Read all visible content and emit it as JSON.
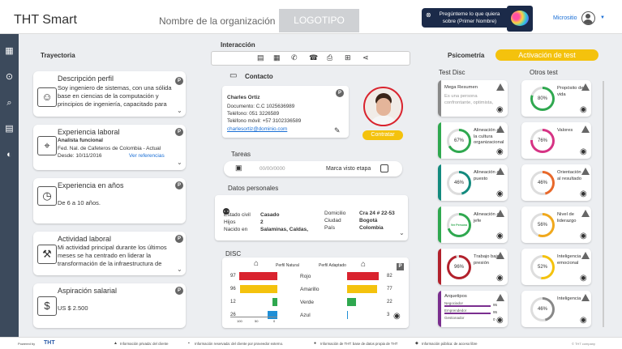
{
  "header": {
    "app_title": "THT Smart",
    "org_name": "Nombre de la organización",
    "logo": "LOGOTIPO",
    "ask_text": "Pregúnteme lo que quiera sobre (Primer Nombre)",
    "microsite": "Micrositio"
  },
  "sections": {
    "trayectoria": "Trayectoria",
    "interaccion": "Interacción",
    "psicometria": "Psicometría",
    "activation": "Activación de test",
    "test_disc": "Test Disc",
    "otros_test": "Otros test"
  },
  "trayectoria": {
    "perfil_title": "Descripción perfil",
    "perfil_text": "Soy ingeniero de sistemas, con una sólida base en ciencias de la computación y principios de ingeniería, capacitado para",
    "exp_title": "Experiencia laboral",
    "exp_role": "Analista funcional",
    "exp_company": "Fed. Nal. de Cafeteros de Colombia - Actual",
    "exp_since": "Desde: 10/11/2016",
    "exp_refs": "Ver referencias",
    "years_title": "Experiencia en años",
    "years_text": "De 6 a 10 años.",
    "act_title": "Actividad laboral",
    "act_text": "Mi actividad principal durante los últimos meses se ha centrado en liderar la transformación de la infraestructura de",
    "sal_title": "Aspiración salarial",
    "sal_text": "US $ 2.500"
  },
  "contacto": {
    "title": "Contacto",
    "name": "Charles Ortiz",
    "doc": "Documento: C.C 1025636989",
    "tel": "Teléfono: 051 3226589",
    "mobile": "Teléfono móvil: +57 3102336589",
    "email": "charlesortiz@dominio.com",
    "hire": "Contratar"
  },
  "tareas": {
    "title": "Tareas",
    "date_placeholder": "00/00/0000",
    "check_label": "Marca visto etapa"
  },
  "datos": {
    "title": "Datos personales",
    "estado_label": "Estado civil",
    "estado": "Casado",
    "hijos_label": "Hijos",
    "hijos": "2",
    "nacido_label": "Nacido en",
    "nacido": "Salaminas, Caldas,",
    "dom_label": "Domicilio",
    "dom": "Cra 24 # 22-53",
    "ciudad_label": "Ciudad",
    "ciudad": "Bogotá",
    "pais_label": "País",
    "pais": "Colombia"
  },
  "disc": {
    "title": "DISC",
    "natural": "Perfil Natural",
    "adaptado": "Perfil Adaptado",
    "axis_left": "100",
    "axis_mid": "50",
    "axis_right": "0",
    "rows": [
      {
        "label": "Rojo",
        "left": 97,
        "right": 82,
        "color": "#d9232e"
      },
      {
        "label": "Amarillo",
        "left": 96,
        "right": 77,
        "color": "#f4c20d"
      },
      {
        "label": "Verde",
        "left": 12,
        "right": 22,
        "color": "#2fa84f"
      },
      {
        "label": "Azul",
        "left": 26,
        "right": 3,
        "color": "#1f8fd6"
      }
    ]
  },
  "disc_tests": [
    {
      "name": "Mega Resumen",
      "sub": "Es una persona confrontante, optimista,",
      "pct": null,
      "color": "#888"
    },
    {
      "name": "Alineación a la cultura organizacional",
      "pct": "67%",
      "color": "#2fa84f"
    },
    {
      "name": "Alineación al puesto",
      "pct": "46%",
      "color": "#138a7e"
    },
    {
      "name": "Alineación al jefe",
      "pct": "Ver Persona",
      "color": "#2fa84f"
    },
    {
      "name": "Trabajo bajo presión",
      "pct": "96%",
      "color": "#b2212c"
    },
    {
      "name": "Arquetipos",
      "bars": [
        {
          "label": "Negociador",
          "val": "95"
        },
        {
          "label": "Emprendedor",
          "val": "95"
        },
        {
          "label": "Gestionador",
          "val": "0"
        }
      ],
      "color": "#7a2e8f"
    }
  ],
  "other_tests": [
    {
      "name": "Propósito de vida",
      "pct": "80%",
      "color": "#2fa84f"
    },
    {
      "name": "Valores",
      "pct": "76%",
      "color": "#d63384"
    },
    {
      "name": "Orientación al resultado",
      "pct": "46%",
      "color": "#e8682a"
    },
    {
      "name": "Nivel de liderazgo",
      "pct": "56%",
      "color": "#f0a81c"
    },
    {
      "name": "Inteligencia emocional",
      "pct": "52%",
      "color": "#f4c20d"
    },
    {
      "name": "Inteligencia",
      "pct": "46%",
      "color": "#888"
    }
  ],
  "footer": {
    "powered": "Powered by",
    "brand": "THT",
    "legend": [
      {
        "badge": "▲",
        "text": "Información privada: del cliente"
      },
      {
        "badge": "▪",
        "text": "Información reservada: del cliente por proveedor externo."
      },
      {
        "badge": "●",
        "text": "Información de THT: base de datos propia de THT"
      },
      {
        "badge": "◆",
        "text": "Información pública: de acceso libre"
      }
    ],
    "copyright": "© THT company"
  }
}
